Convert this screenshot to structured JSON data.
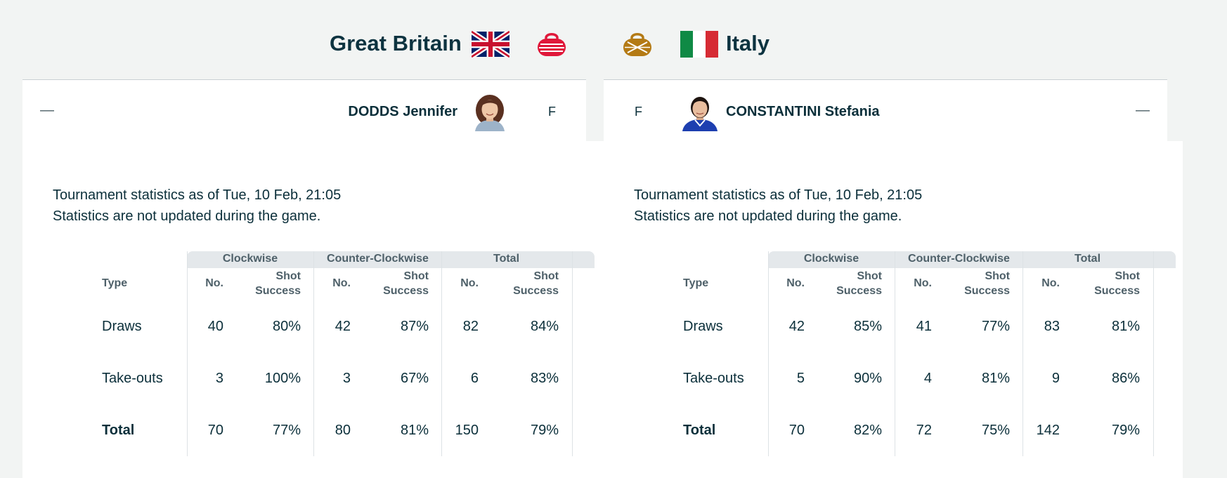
{
  "teams": {
    "home": {
      "name": "Great Britain",
      "flag_icon": "uk-flag-icon",
      "stone_color": "#e0183a"
    },
    "away": {
      "name": "Italy",
      "flag_icon": "italy-flag-icon",
      "stone_color": "#b47a14"
    }
  },
  "players": {
    "home": {
      "name": "DODDS Jennifer",
      "position": "F",
      "toggle": "—"
    },
    "away": {
      "name": "CONSTANTINI Stefania",
      "position": "F",
      "toggle": "—"
    }
  },
  "stats": {
    "home": {
      "notice_line1": "Tournament statistics as of Tue, 10 Feb, 21:05",
      "notice_line2": "Statistics are not updated during the game.",
      "groups": [
        "Clockwise",
        "Counter-Clockwise",
        "Total"
      ],
      "col_type": "Type",
      "col_no": "No.",
      "col_shot_1": "Shot",
      "col_shot_2": "Success",
      "rows": [
        {
          "type": "Draws",
          "cw_no": "40",
          "cw_pct": "80%",
          "ccw_no": "42",
          "ccw_pct": "87%",
          "tot_no": "82",
          "tot_pct": "84%"
        },
        {
          "type": "Take-outs",
          "cw_no": "3",
          "cw_pct": "100%",
          "ccw_no": "3",
          "ccw_pct": "67%",
          "tot_no": "6",
          "tot_pct": "83%"
        },
        {
          "type": "Total",
          "cw_no": "70",
          "cw_pct": "77%",
          "ccw_no": "80",
          "ccw_pct": "81%",
          "tot_no": "150",
          "tot_pct": "79%"
        }
      ]
    },
    "away": {
      "notice_line1": "Tournament statistics as of Tue, 10 Feb, 21:05",
      "notice_line2": "Statistics are not updated during the game.",
      "groups": [
        "Clockwise",
        "Counter-Clockwise",
        "Total"
      ],
      "col_type": "Type",
      "col_no": "No.",
      "col_shot_1": "Shot",
      "col_shot_2": "Success",
      "rows": [
        {
          "type": "Draws",
          "cw_no": "42",
          "cw_pct": "85%",
          "ccw_no": "41",
          "ccw_pct": "77%",
          "tot_no": "83",
          "tot_pct": "81%"
        },
        {
          "type": "Take-outs",
          "cw_no": "5",
          "cw_pct": "90%",
          "ccw_no": "4",
          "ccw_pct": "81%",
          "tot_no": "9",
          "tot_pct": "86%"
        },
        {
          "type": "Total",
          "cw_no": "70",
          "cw_pct": "82%",
          "ccw_no": "72",
          "ccw_pct": "75%",
          "tot_no": "142",
          "tot_pct": "79%"
        }
      ]
    }
  }
}
